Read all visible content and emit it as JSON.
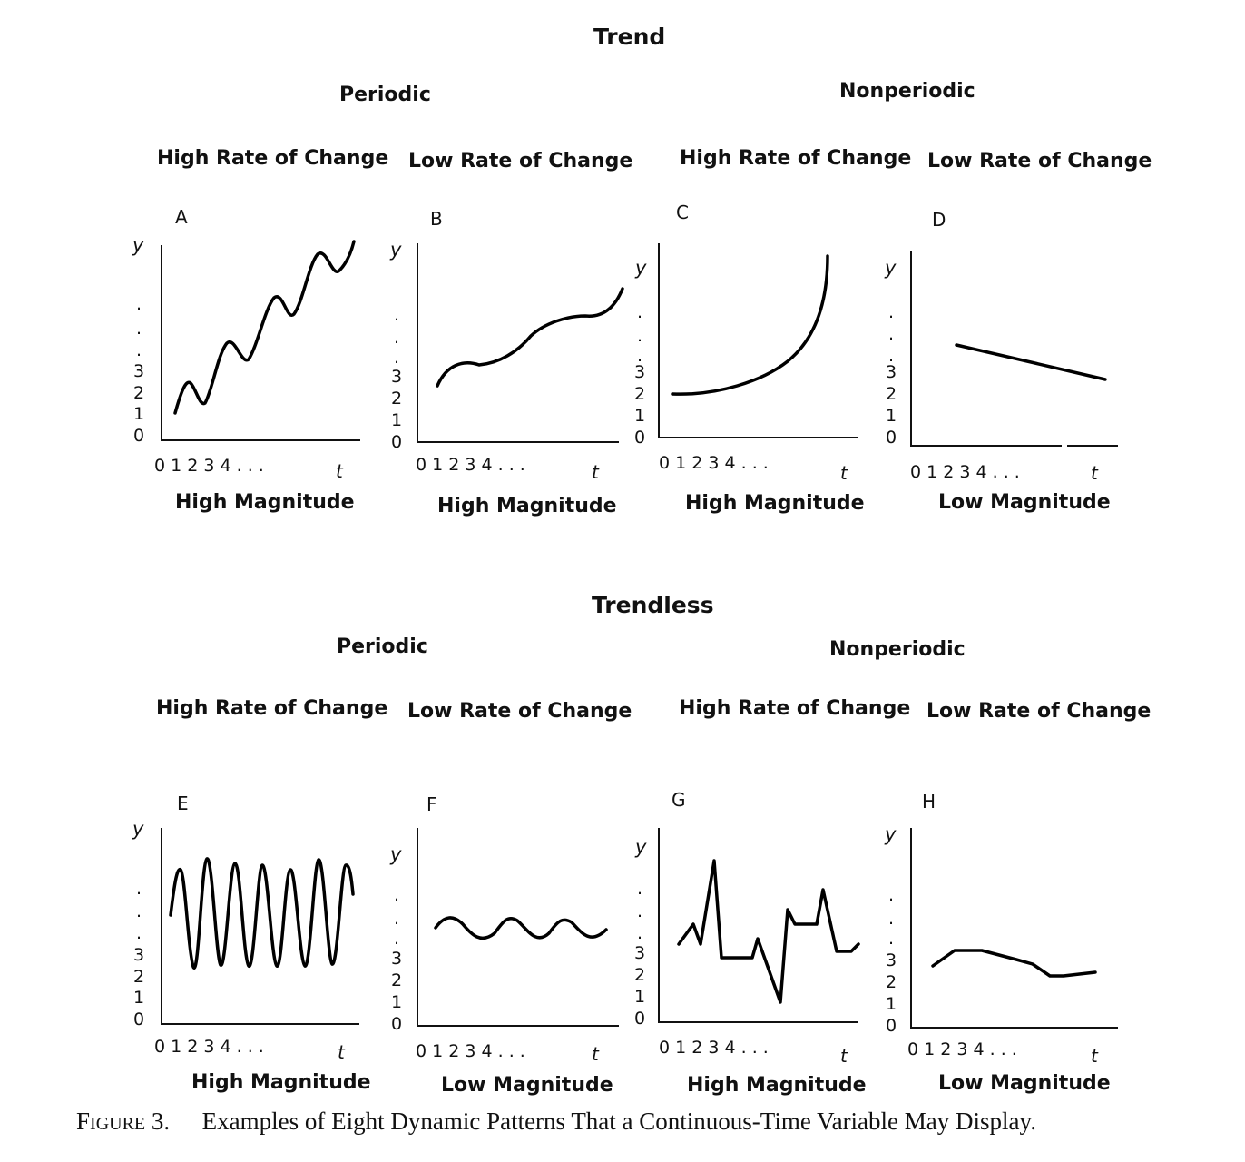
{
  "sections": [
    {
      "title": "Trend",
      "periodic": "Periodic",
      "nonperiodic": "Nonperiodic",
      "panels": [
        {
          "letter": "A",
          "rate": "High Rate of Change",
          "magnitude": "High Magnitude"
        },
        {
          "letter": "B",
          "rate": "Low Rate of Change",
          "magnitude": "High Magnitude"
        },
        {
          "letter": "C",
          "rate": "High Rate of Change",
          "magnitude": "High Magnitude"
        },
        {
          "letter": "D",
          "rate": "Low Rate of Change",
          "magnitude": "Low Magnitude"
        }
      ]
    },
    {
      "title": "Trendless",
      "periodic": "Periodic",
      "nonperiodic": "Nonperiodic",
      "panels": [
        {
          "letter": "E",
          "rate": "High Rate of Change",
          "magnitude": "High Magnitude"
        },
        {
          "letter": "F",
          "rate": "Low Rate of Change",
          "magnitude": "Low Magnitude"
        },
        {
          "letter": "G",
          "rate": "High Rate of Change",
          "magnitude": "High Magnitude"
        },
        {
          "letter": "H",
          "rate": "Low Rate of Change",
          "magnitude": "Low Magnitude"
        }
      ]
    }
  ],
  "axis": {
    "y_label": "y",
    "t_label": "t",
    "y_ticks": [
      "3",
      "2",
      "1",
      "0"
    ],
    "x_ticks": "0 1 2 3 4 . . ."
  },
  "caption": {
    "figure_word_first": "F",
    "figure_word_rest": "IGURE",
    "figure_number": "3.",
    "text": "Examples of Eight Dynamic Patterns That a Continuous-Time Variable May Display."
  }
}
